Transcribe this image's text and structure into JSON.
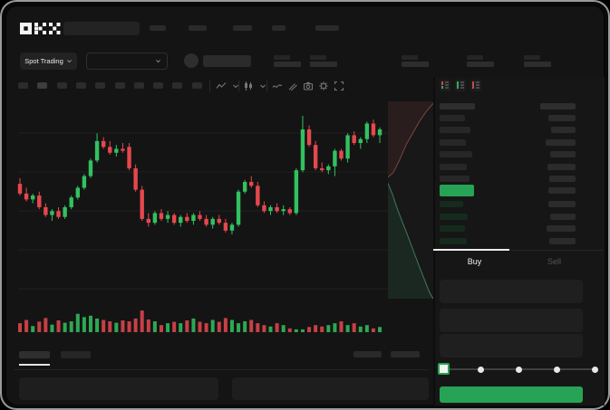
{
  "brand": {
    "name": "OKX"
  },
  "header": {
    "market_selector_label": "Spot Trading"
  },
  "toolbar": {
    "icons": [
      "indicators",
      "chevron-down",
      "candle-style",
      "chevron-down2",
      "line-style",
      "draw",
      "camera",
      "settings",
      "fullscreen"
    ],
    "timeframe_slots": 10
  },
  "orderbook": {
    "view_icons": [
      "book-split",
      "book-bids-only",
      "book-asks-only"
    ],
    "asks": {
      "left_widths": [
        28,
        34,
        29,
        36,
        30,
        33
      ],
      "right_widths": [
        30,
        27,
        33,
        28,
        31,
        29
      ]
    },
    "mid_row": {
      "highlight_width": 38,
      "right_width": 30
    },
    "bids": {
      "left_widths": [
        26,
        31,
        28,
        30
      ],
      "right_widths": [
        30,
        28,
        32,
        29
      ]
    }
  },
  "trade_panel": {
    "tabs": [
      {
        "label": "Buy",
        "active": true
      },
      {
        "label": "Sell",
        "active": false
      }
    ],
    "form_rows": 3,
    "slider_stops": 5,
    "slider_value_index": 0
  },
  "colors": {
    "accent_green": "#27a355",
    "candle_up": "#32c15f",
    "candle_down": "#e5484d",
    "depth_ask_line": "#7d4343",
    "depth_bid_line": "#3d7a5c"
  },
  "chart_data": {
    "type": "candlestick",
    "y_range": [
      0,
      100
    ],
    "grid": true,
    "candles": [
      [
        59,
        62,
        53,
        54
      ],
      [
        54,
        57,
        50,
        51
      ],
      [
        51,
        54,
        49,
        53
      ],
      [
        53,
        55,
        46,
        47
      ],
      [
        47,
        49,
        42,
        43
      ],
      [
        43,
        46,
        40,
        45
      ],
      [
        45,
        47,
        41,
        42
      ],
      [
        42,
        48,
        41,
        47
      ],
      [
        47,
        53,
        46,
        52
      ],
      [
        52,
        58,
        51,
        57
      ],
      [
        57,
        64,
        56,
        63
      ],
      [
        63,
        72,
        62,
        71
      ],
      [
        71,
        85,
        70,
        81
      ],
      [
        81,
        83,
        77,
        78
      ],
      [
        78,
        81,
        74,
        75
      ],
      [
        75,
        79,
        73,
        77
      ],
      [
        77,
        80,
        75,
        76
      ],
      [
        78,
        80,
        66,
        67
      ],
      [
        67,
        69,
        55,
        56
      ],
      [
        56,
        58,
        40,
        41
      ],
      [
        41,
        44,
        37,
        39
      ],
      [
        39,
        45,
        38,
        44
      ],
      [
        44,
        46,
        40,
        41
      ],
      [
        41,
        45,
        39,
        43
      ],
      [
        43,
        44,
        38,
        39
      ],
      [
        39,
        43,
        37,
        42
      ],
      [
        42,
        44,
        39,
        40
      ],
      [
        40,
        44,
        38,
        43
      ],
      [
        43,
        45,
        40,
        41
      ],
      [
        41,
        43,
        37,
        38
      ],
      [
        38,
        42,
        36,
        41
      ],
      [
        41,
        43,
        38,
        39
      ],
      [
        39,
        41,
        34,
        35
      ],
      [
        35,
        39,
        33,
        38
      ],
      [
        38,
        56,
        37,
        55
      ],
      [
        55,
        61,
        54,
        60
      ],
      [
        60,
        63,
        57,
        58
      ],
      [
        58,
        60,
        47,
        48
      ],
      [
        48,
        50,
        44,
        45
      ],
      [
        45,
        48,
        43,
        47
      ],
      [
        47,
        49,
        44,
        45
      ],
      [
        45,
        48,
        43,
        46
      ],
      [
        46,
        47,
        43,
        44
      ],
      [
        44,
        67,
        43,
        66
      ],
      [
        66,
        94,
        65,
        87
      ],
      [
        87,
        89,
        78,
        79
      ],
      [
        79,
        81,
        66,
        67
      ],
      [
        67,
        70,
        65,
        66
      ],
      [
        66,
        69,
        64,
        68
      ],
      [
        68,
        77,
        63,
        76
      ],
      [
        76,
        77,
        71,
        72
      ],
      [
        72,
        85,
        70,
        84
      ],
      [
        84,
        86,
        79,
        80
      ],
      [
        80,
        83,
        77,
        82
      ],
      [
        82,
        91,
        80,
        90
      ],
      [
        90,
        92,
        83,
        84
      ],
      [
        84,
        88,
        80,
        87
      ]
    ],
    "volumes": [
      38,
      52,
      26,
      45,
      60,
      32,
      50,
      40,
      46,
      78,
      64,
      70,
      58,
      52,
      46,
      40,
      50,
      46,
      58,
      92,
      54,
      46,
      30,
      38,
      44,
      38,
      50,
      58,
      44,
      38,
      52,
      44,
      60,
      52,
      38,
      46,
      52,
      38,
      30,
      24,
      38,
      30,
      16,
      12,
      12,
      22,
      30,
      24,
      30,
      38,
      46,
      30,
      38,
      24,
      30,
      16,
      22
    ],
    "depth": {
      "asks": [
        [
          0,
          0.385
        ],
        [
          0.12,
          0.36
        ],
        [
          0.25,
          0.3
        ],
        [
          0.4,
          0.22
        ],
        [
          0.55,
          0.16
        ],
        [
          0.7,
          0.1
        ],
        [
          0.85,
          0.05
        ],
        [
          1,
          0.01
        ]
      ],
      "bids": [
        [
          0,
          0.415
        ],
        [
          0.1,
          0.47
        ],
        [
          0.2,
          0.54
        ],
        [
          0.3,
          0.6
        ],
        [
          0.42,
          0.67
        ],
        [
          0.55,
          0.75
        ],
        [
          0.68,
          0.83
        ],
        [
          0.8,
          0.9
        ],
        [
          0.92,
          0.97
        ],
        [
          1,
          1
        ]
      ]
    }
  }
}
